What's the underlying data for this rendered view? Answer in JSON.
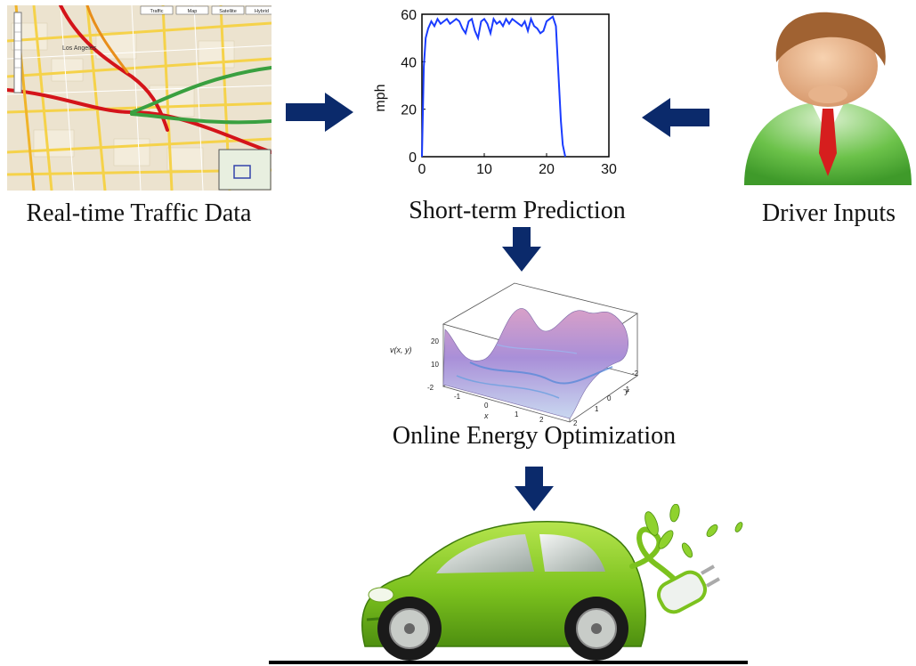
{
  "captions": {
    "traffic": "Real-time Traffic Data",
    "prediction": "Short-term Prediction",
    "driver": "Driver Inputs",
    "optimization": "Online Energy Optimization"
  },
  "map": {
    "city_label": "Los Angeles",
    "buttons": [
      "Traffic",
      "Map",
      "Satellite",
      "Hybrid"
    ]
  },
  "surface_plot": {
    "z_label": "v(x, y)",
    "x_label": "x",
    "y_label": "y",
    "z_ticks": [
      "20",
      "10"
    ],
    "x_ticks": [
      "-2",
      "-1",
      "0",
      "1",
      "2"
    ],
    "y_ticks": [
      "2",
      "1",
      "0",
      "-1",
      "-2"
    ]
  },
  "colors": {
    "arrow": "#0b2a6b",
    "speed_line": "#1a3cff",
    "car_green": "#7cc21e",
    "tie_red": "#d61e1e"
  },
  "icons": [
    "map-thumbnail",
    "speed-prediction-chart",
    "driver-avatar-icon",
    "energy-surface-plot",
    "electric-car-icon",
    "plug-icon"
  ],
  "chart_data": {
    "type": "line",
    "title": "",
    "xlabel": "",
    "ylabel": "mph",
    "xlim": [
      0,
      30
    ],
    "ylim": [
      0,
      60
    ],
    "x_ticks": [
      0,
      10,
      20,
      30
    ],
    "y_ticks": [
      0,
      20,
      40,
      60
    ],
    "series": [
      {
        "x": [
          0,
          0.3,
          0.6,
          1,
          1.5,
          2,
          2.5,
          3,
          3.5,
          4,
          4.5,
          5,
          5.5,
          6,
          6.5,
          7,
          7.5,
          8,
          8.5,
          9,
          9.5,
          10,
          10.5,
          11,
          11.5,
          12,
          12.5,
          13,
          13.5,
          14,
          14.5,
          15,
          15.5,
          16,
          16.5,
          17,
          17.5,
          18,
          18.5,
          19,
          19.5,
          20,
          20.5,
          21,
          21.5,
          22,
          22.3,
          22.6,
          23
        ],
        "values": [
          0,
          38,
          50,
          54,
          57,
          55,
          58,
          56,
          57,
          58,
          56,
          57,
          58,
          57,
          54,
          52,
          57,
          58,
          53,
          50,
          57,
          58,
          56,
          52,
          58,
          56,
          57,
          55,
          58,
          56,
          58,
          57,
          56,
          55,
          57,
          53,
          58,
          55,
          54,
          52,
          53,
          57,
          58,
          59,
          55,
          30,
          15,
          5,
          0
        ]
      }
    ]
  }
}
